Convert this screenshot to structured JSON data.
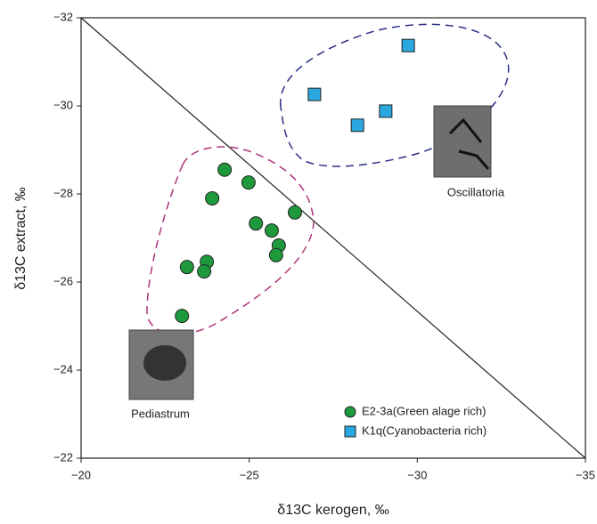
{
  "chart_data": {
    "type": "scatter",
    "x_label": "δ13C kerogen, ‰",
    "y_label": "δ13C extract, ‰",
    "xlim": [
      -20,
      -35
    ],
    "ylim": [
      -22,
      -32
    ],
    "xticks": [
      {
        "value": -20,
        "label": "−20"
      },
      {
        "value": -25,
        "label": "−25"
      },
      {
        "value": -30,
        "label": "−30"
      },
      {
        "value": -35,
        "label": "−35"
      }
    ],
    "yticks": [
      {
        "value": -22,
        "label": "−22"
      },
      {
        "value": -24,
        "label": "−24"
      },
      {
        "value": -26,
        "label": "−26"
      },
      {
        "value": -28,
        "label": "−28"
      },
      {
        "value": -30,
        "label": "−30"
      },
      {
        "value": -32,
        "label": "−32"
      }
    ],
    "series": [
      {
        "name": "E2-3a(Green alage rich)",
        "color": "#1e9a3c",
        "marker": "circle",
        "x": [
          -24.27,
          -24.98,
          -23.9,
          -26.36,
          -25.2,
          -25.67,
          -25.88,
          -25.8,
          -23.74,
          -23.15,
          -23.66,
          -23.0
        ],
        "values": [
          -28.55,
          -28.26,
          -27.9,
          -27.58,
          -27.33,
          -27.17,
          -26.83,
          -26.61,
          -26.46,
          -26.34,
          -26.24,
          -25.23
        ]
      },
      {
        "name": "K1q(Cyanobacteria rich)",
        "color": "#2aa7df",
        "marker": "square",
        "x": [
          -29.73,
          -26.94,
          -29.06,
          -28.22
        ],
        "values": [
          -31.37,
          -30.26,
          -29.88,
          -29.56
        ]
      }
    ],
    "annotations": [
      "Oscillatoria",
      "Pediastrum"
    ],
    "legend": "lower-right"
  }
}
